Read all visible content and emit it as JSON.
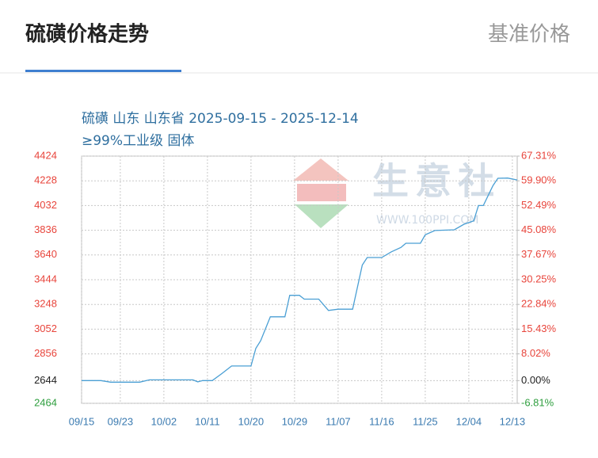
{
  "header": {
    "title": "硫磺价格走势",
    "tab": "基准价格"
  },
  "chart_data": {
    "type": "line",
    "title": "硫磺 山东 山东省 2025-09-15 - 2025-12-14",
    "subtitle": "≥99%工业级 固体",
    "watermark": "生意社",
    "watermark_url": "WWW.100PPI.COM",
    "x": [
      "09/15",
      "09/19",
      "09/21",
      "09/27",
      "09/29",
      "10/08",
      "10/09",
      "10/10",
      "10/12",
      "10/14",
      "10/16",
      "10/20",
      "10/21",
      "10/22",
      "10/24",
      "10/27",
      "10/28",
      "10/30",
      "10/31",
      "11/03",
      "11/05",
      "11/07",
      "11/10",
      "11/12",
      "11/13",
      "11/16",
      "11/18",
      "11/20",
      "11/21",
      "11/24",
      "11/25",
      "11/27",
      "12/01",
      "12/03",
      "12/05",
      "12/06",
      "12/07",
      "12/09",
      "12/10",
      "12/12",
      "12/14"
    ],
    "values": [
      2644,
      2644,
      2632,
      2632,
      2650,
      2650,
      2634,
      2644,
      2644,
      2700,
      2760,
      2760,
      2900,
      2960,
      3150,
      3150,
      3320,
      3320,
      3290,
      3290,
      3200,
      3210,
      3210,
      3560,
      3620,
      3620,
      3665,
      3700,
      3733,
      3733,
      3800,
      3834,
      3840,
      3884,
      3910,
      4032,
      4032,
      4190,
      4248,
      4250,
      4235
    ],
    "color": "#4a9fd4",
    "xlim": [
      "09/15",
      "12/14"
    ],
    "xticks": [
      "09/15",
      "09/23",
      "10/02",
      "10/11",
      "10/20",
      "10/29",
      "11/07",
      "11/16",
      "11/25",
      "12/04",
      "12/13"
    ],
    "ylim": [
      2464,
      4424
    ],
    "yticks": [
      4424,
      4228,
      4032,
      3836,
      3640,
      3444,
      3248,
      3052,
      2856,
      2644,
      2464
    ],
    "y2lim": [
      -6.81,
      67.31
    ],
    "y2ticks": [
      {
        "value": 67.31,
        "label": "67.31%"
      },
      {
        "value": 59.9,
        "label": "59.90%"
      },
      {
        "value": 52.49,
        "label": "52.49%"
      },
      {
        "value": 45.08,
        "label": "45.08%"
      },
      {
        "value": 37.67,
        "label": "37.67%"
      },
      {
        "value": 30.25,
        "label": "30.25%"
      },
      {
        "value": 22.84,
        "label": "22.84%"
      },
      {
        "value": 15.43,
        "label": "15.43%"
      },
      {
        "value": 8.02,
        "label": "8.02%"
      },
      {
        "value": 0,
        "label": "0.00%"
      },
      {
        "value": -6.81,
        "label": "-6.81%"
      }
    ],
    "tick_colors": {
      "up": "#e8453c",
      "flat": "#222222",
      "down": "#2e9e3e"
    },
    "grid": true
  }
}
